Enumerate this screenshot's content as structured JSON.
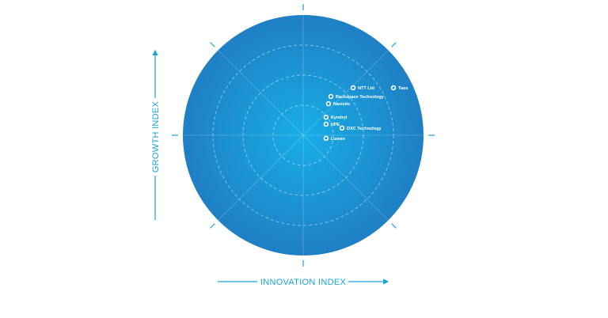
{
  "chart_data": {
    "type": "scatter",
    "title": "",
    "xlabel": "INNOVATION INDEX",
    "ylabel": "GROWTH INDEX",
    "xlim": [
      -4,
      4
    ],
    "ylim": [
      -4,
      4
    ],
    "rings": [
      1,
      2,
      3
    ],
    "grid": true,
    "colors": {
      "disc_center": "#18aee6",
      "disc_edge": "#1f7fc4",
      "axis": "#1aa3dd",
      "point": "#ffffff"
    },
    "points": [
      {
        "label": "NTT Ltd",
        "x": 1.66,
        "y": 1.58
      },
      {
        "label": "Taos",
        "x": 3.0,
        "y": 1.58
      },
      {
        "label": "Rackspace Technology",
        "x": 0.92,
        "y": 1.29
      },
      {
        "label": "Navisite",
        "x": 0.84,
        "y": 1.05
      },
      {
        "label": "Kyndryl",
        "x": 0.76,
        "y": 0.6
      },
      {
        "label": "HPE",
        "x": 0.76,
        "y": 0.37
      },
      {
        "label": "DXC Technology",
        "x": 1.29,
        "y": 0.24
      },
      {
        "label": "Lumen",
        "x": 0.76,
        "y": -0.1
      }
    ]
  }
}
